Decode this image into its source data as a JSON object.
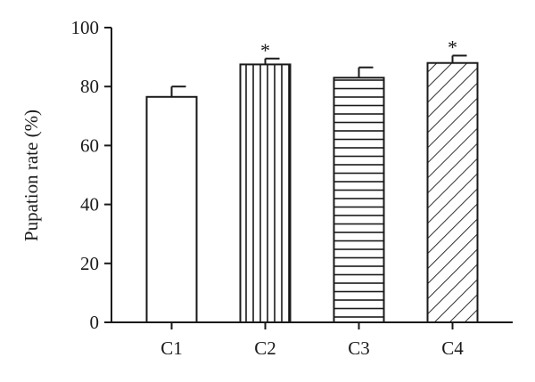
{
  "chart_data": {
    "type": "bar",
    "categories": [
      "C1",
      "C2",
      "C3",
      "C4"
    ],
    "values": [
      76.5,
      87.5,
      83.0,
      88.0
    ],
    "errors": [
      3.5,
      2.0,
      3.5,
      2.5
    ],
    "significance": [
      "",
      "*",
      "",
      "*"
    ],
    "patterns": [
      "none",
      "vertical-lines",
      "horizontal-lines",
      "diagonal-lines"
    ],
    "ylabel": "Pupation rate (%)",
    "xlabel": "",
    "ylim": [
      0,
      100
    ],
    "yticks": [
      0,
      20,
      40,
      60,
      80,
      100
    ],
    "grid": false,
    "colors": {
      "stroke": "#1a1a1a",
      "fill": "#ffffff"
    }
  }
}
